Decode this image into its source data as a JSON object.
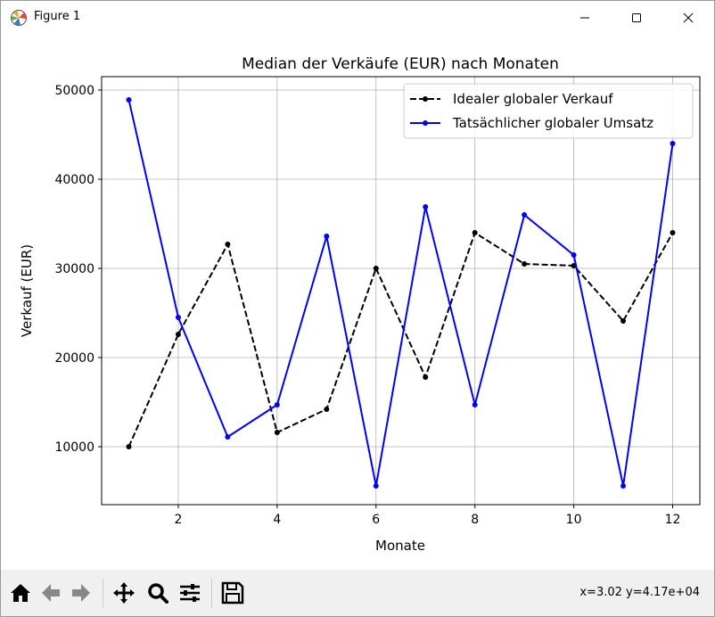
{
  "window": {
    "title": "Figure 1"
  },
  "toolbar": {
    "buttons": [
      {
        "name": "home-icon",
        "label": "Home"
      },
      {
        "name": "back-icon",
        "label": "Back"
      },
      {
        "name": "forward-icon",
        "label": "Forward"
      },
      {
        "name": "pan-icon",
        "label": "Pan"
      },
      {
        "name": "zoom-icon",
        "label": "Zoom"
      },
      {
        "name": "configure-subplots-icon",
        "label": "Configure subplots"
      },
      {
        "name": "save-icon",
        "label": "Save"
      }
    ],
    "coordinates": "x=3.02 y=4.17e+04"
  },
  "chart_data": {
    "type": "line",
    "title": "Median der Verkäufe (EUR) nach Monaten",
    "xlabel": "Monate",
    "ylabel": "Verkauf (EUR)",
    "x": [
      1,
      2,
      3,
      4,
      5,
      6,
      7,
      8,
      9,
      10,
      11,
      12
    ],
    "xlim": [
      0.45,
      12.55
    ],
    "ylim": [
      3500,
      51500
    ],
    "xticks": [
      2,
      4,
      6,
      8,
      10,
      12
    ],
    "yticks": [
      10000,
      20000,
      30000,
      40000,
      50000
    ],
    "grid": true,
    "legend_position": "upper right",
    "series": [
      {
        "name": "Idealer globaler Verkauf",
        "color": "#000000",
        "style": "dashed",
        "values": [
          10000,
          22600,
          32700,
          11600,
          14200,
          30000,
          17800,
          34000,
          30500,
          30300,
          24100,
          34000
        ]
      },
      {
        "name": "Tatsächlicher globaler Umsatz",
        "color": "#0000ff",
        "style": "solid",
        "values": [
          48900,
          24500,
          11100,
          14700,
          33600,
          5600,
          36900,
          14700,
          36000,
          31500,
          5600,
          44000
        ]
      }
    ]
  }
}
